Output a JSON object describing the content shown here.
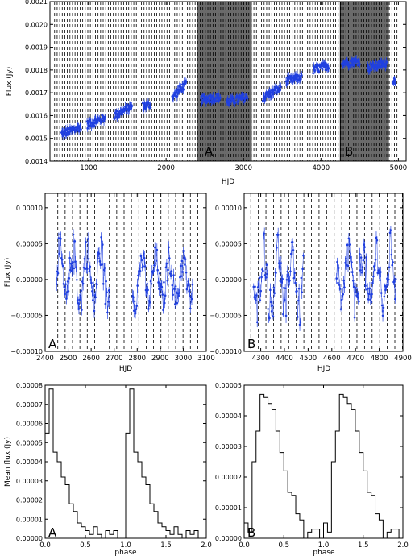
{
  "figure": {
    "background": "#ffffff",
    "data_color": "#2040e0",
    "shade_color": "#6a6a6a",
    "dashed_line_color": "#000000"
  },
  "chart_data": [
    {
      "id": "top",
      "type": "scatter",
      "title": "",
      "xlabel": "HJD",
      "ylabel": "Flux (Jy)",
      "xlim": [
        500,
        5100
      ],
      "ylim": [
        0.0014,
        0.0021
      ],
      "xticks": [
        1000,
        2000,
        3000,
        4000,
        5000
      ],
      "yticks": [
        0.0014,
        0.0015,
        0.0016,
        0.0017,
        0.0018,
        0.0019,
        0.002,
        0.0021
      ],
      "ytick_labels": [
        "0.0014",
        "0.0015",
        "0.0016",
        "0.0017",
        "0.0018",
        "0.0019",
        "0.0020",
        "0.0021"
      ],
      "grid": "dashed vertical lines every ~33 days",
      "shaded_regions": [
        {
          "label": "A",
          "x": [
            2400,
            3100
          ]
        },
        {
          "label": "B",
          "x": [
            4250,
            4870
          ]
        }
      ],
      "series": [
        {
          "marker": "point with error bar",
          "segments": [
            {
              "x": [
                650,
                900
              ],
              "y0": 0.00152,
              "y1": 0.00155
            },
            {
              "x": [
                980,
                1210
              ],
              "y0": 0.00156,
              "y1": 0.00159
            },
            {
              "x": [
                1330,
                1560
              ],
              "y0": 0.0016,
              "y1": 0.00164
            },
            {
              "x": [
                1700,
                1800
              ],
              "y0": 0.00164,
              "y1": 0.00165
            },
            {
              "x": [
                2080,
                2260
              ],
              "y0": 0.00168,
              "y1": 0.00174
            },
            {
              "x": [
                2450,
                2700
              ],
              "y0": 0.00167,
              "y1": 0.00168
            },
            {
              "x": [
                2780,
                3050
              ],
              "y0": 0.00166,
              "y1": 0.00168
            },
            {
              "x": [
                3250,
                3480
              ],
              "y0": 0.00168,
              "y1": 0.00172
            },
            {
              "x": [
                3550,
                3750
              ],
              "y0": 0.00175,
              "y1": 0.00177
            },
            {
              "x": [
                3900,
                4100
              ],
              "y0": 0.0018,
              "y1": 0.00182
            },
            {
              "x": [
                4270,
                4500
              ],
              "y0": 0.00183,
              "y1": 0.00184
            },
            {
              "x": [
                4600,
                4850
              ],
              "y0": 0.00181,
              "y1": 0.00183
            },
            {
              "x": [
                4930,
                4960
              ],
              "y0": 0.00176,
              "y1": 0.00175
            }
          ]
        }
      ]
    },
    {
      "id": "midA",
      "type": "scatter",
      "title": "",
      "xlabel": "HJD",
      "ylabel": "Flux (Jy)",
      "xlim": [
        2400,
        3100
      ],
      "ylim": [
        -0.0001,
        0.00012
      ],
      "xticks": [
        2400,
        2500,
        2600,
        2700,
        2800,
        2900,
        3000,
        3100
      ],
      "yticks": [
        -0.0001,
        -5e-05,
        0,
        5e-05,
        0.0001
      ],
      "ytick_labels": [
        "−0.00010",
        "−0.00005",
        "0.00000",
        "0.00005",
        "0.00010"
      ],
      "grid": "dashed vertical lines",
      "annotation": "A",
      "series": [
        {
          "segments": [
            {
              "x": [
                2450,
                2680
              ],
              "amplitude": 5e-05,
              "mean": 5e-06
            },
            {
              "x": [
                2780,
                3040
              ],
              "amplitude": 4e-05,
              "mean": 0.0
            }
          ]
        }
      ]
    },
    {
      "id": "midB",
      "type": "scatter",
      "title": "",
      "xlabel": "HJD",
      "ylabel": "",
      "xlim": [
        4230,
        4900
      ],
      "ylim": [
        -0.0001,
        0.00012
      ],
      "xticks": [
        4300,
        4400,
        4500,
        4600,
        4700,
        4800,
        4900
      ],
      "yticks": [
        -0.0001,
        -5e-05,
        0,
        5e-05,
        0.0001
      ],
      "ytick_labels": [
        "−0.00010",
        "−0.00005",
        "0.00000",
        "0.00005",
        "0.00010"
      ],
      "grid": "dashed vertical lines",
      "annotation": "B",
      "series": [
        {
          "segments": [
            {
              "x": [
                4270,
                4480
              ],
              "amplitude": 6e-05,
              "mean": 0.0
            },
            {
              "x": [
                4620,
                4870
              ],
              "amplitude": 6e-05,
              "mean": 0.0
            }
          ]
        }
      ]
    },
    {
      "id": "botA",
      "type": "line",
      "title": "",
      "xlabel": "phase",
      "ylabel": "Mean flux (Jy)",
      "xlim": [
        0,
        2.0
      ],
      "ylim": [
        0,
        8e-05
      ],
      "xticks": [
        0,
        0.5,
        1.0,
        1.5,
        2.0
      ],
      "xtick_labels": [
        "0.0",
        "0.5",
        "1.0",
        "1.5",
        "2.0"
      ],
      "yticks": [
        0,
        1e-05,
        2e-05,
        3e-05,
        4e-05,
        5e-05,
        6e-05,
        7e-05,
        8e-05
      ],
      "ytick_labels": [
        "0.00000",
        "0.00001",
        "0.00002",
        "0.00003",
        "0.00004",
        "0.00005",
        "0.00006",
        "0.00007",
        "0.00008"
      ],
      "annotation": "A",
      "bin_width": 0.05,
      "values": [
        5.5e-05,
        7.8e-05,
        4.5e-05,
        4e-05,
        3.2e-05,
        2.8e-05,
        1.8e-05,
        1.4e-05,
        8e-06,
        6e-06,
        4e-06,
        2e-06,
        6e-06,
        2e-06,
        0.0,
        4e-06,
        2e-06,
        4e-06,
        0.0,
        0.0,
        0.0
      ],
      "values_second_cycle_note": "pattern repeats from phase 1.0"
    },
    {
      "id": "botB",
      "type": "line",
      "title": "",
      "xlabel": "phase",
      "ylabel": "",
      "xlim": [
        0,
        2.0
      ],
      "ylim": [
        0,
        5e-05
      ],
      "xticks": [
        0,
        0.5,
        1.0,
        1.5,
        2.0
      ],
      "xtick_labels": [
        "0.0",
        "0.5",
        "1.0",
        "1.5",
        "2.0"
      ],
      "yticks": [
        0,
        1e-05,
        2e-05,
        3e-05,
        4e-05,
        5e-05
      ],
      "ytick_labels": [
        "0.00000",
        "0.00001",
        "0.00002",
        "0.00003",
        "0.00004",
        "0.00005"
      ],
      "annotation": "B",
      "bin_width": 0.05,
      "values": [
        5e-06,
        2e-06,
        2.5e-05,
        3.5e-05,
        4.7e-05,
        4.6e-05,
        4.4e-05,
        4.2e-05,
        3.5e-05,
        2.8e-05,
        2.2e-05,
        1.5e-05,
        1.4e-05,
        8e-06,
        6e-06,
        0.0,
        2e-06,
        3e-06,
        3e-06,
        0.0
      ]
    }
  ]
}
